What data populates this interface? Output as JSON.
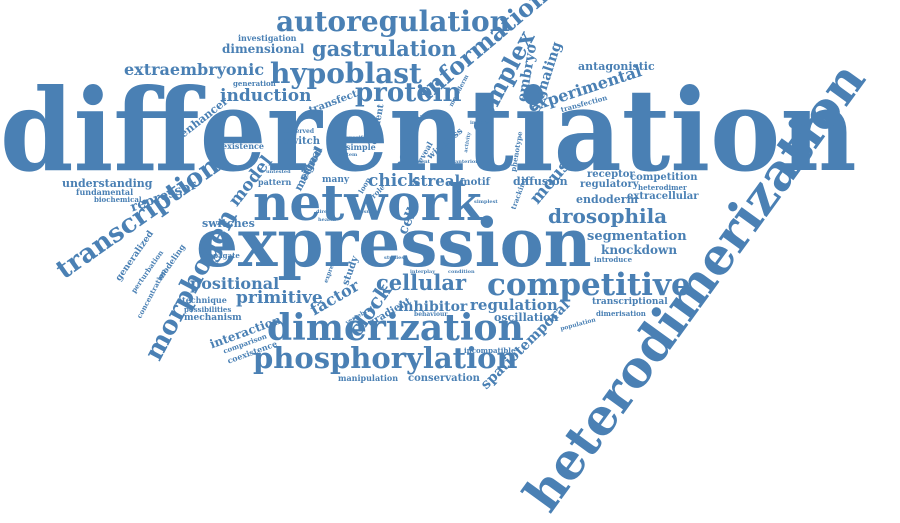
{
  "cloud": {
    "color": "#4a80b4",
    "words": {
      "differentiation": "differentiation",
      "heterodimerization": "heterodimerization",
      "expression": "expression",
      "network": "network",
      "dimerization": "dimerization",
      "phosphorylation": "phosphorylation",
      "competitive": "competitive",
      "transcription": "transcription",
      "morphogen": "morphogen",
      "autoregulation": "autoregulation",
      "hypoblast": "hypoblast",
      "gastrulation": "gastrulation",
      "information": "information",
      "protein": "protein",
      "complex": "complex",
      "extraembryonic": "extraembryonic",
      "induction": "induction",
      "dimensional": "dimensional",
      "investigation": "investigation",
      "signaling": "signaling",
      "embryo": "embryo",
      "experimental": "experimental",
      "antagonistic": "antagonistic",
      "transfection": "transfection",
      "transfect": "transfect",
      "mesoderm": "mesoderm",
      "generation": "generation",
      "enhancer": "enhancer",
      "existence": "existence",
      "observed": "observed",
      "switch": "switch",
      "element": "element",
      "account": "account",
      "wingless": "wingless",
      "feedback": "feedback",
      "intrinsic": "intrinsic",
      "phenotype": "phenotype",
      "chick": "chick",
      "streak": "streak",
      "motif": "motif",
      "mouse": "mouse",
      "diffusion": "diffusion",
      "tracking": "tracking",
      "receptor": "receptor",
      "competition": "competition",
      "regulatory": "regulatory",
      "heterodimer": "heterodimer",
      "extracellular": "extracellular",
      "endoderm": "endoderm",
      "drosophila": "drosophila",
      "segmentation": "segmentation",
      "knockdown": "knockdown",
      "introduce": "introduce",
      "understanding": "understanding",
      "fundamental": "fundamental",
      "biochemical": "biochemical",
      "repressor": "repressor",
      "model": "model",
      "pattern": "pattern",
      "method": "method",
      "signal": "signal",
      "many": "many",
      "cell": "cell",
      "simple": "simple",
      "reveal": "reveal",
      "switches": "switches",
      "generalized": "generalized",
      "perturbation": "perturbation",
      "modeling": "modeling",
      "concentration": "concentration",
      "propagate": "propagate",
      "positional": "positional",
      "primitive": "primitive",
      "technique": "technique",
      "possibilities": "possibilities",
      "mechanism": "mechanism",
      "factor": "factor",
      "clock": "clock",
      "study": "study",
      "cellular": "cellular",
      "gradient": "gradient",
      "inhibitor": "inhibitor",
      "regulation": "regulation",
      "oscillation": "oscillation",
      "spatiotemporal": "spatiotemporal",
      "transcriptional": "transcriptional",
      "dimerisation": "dimerisation",
      "population": "population",
      "interaction": "interaction",
      "comparison": "comparison",
      "coexistence": "coexistence",
      "incompatible": "incompatible",
      "manipulation": "manipulation",
      "conservation": "conservation",
      "behaviour": "behaviour",
      "condition": "condition",
      "vertebrate": "vertebrate",
      "interplay": "interplay",
      "express": "express",
      "studies": "studies",
      "role": "role",
      "loop": "loop",
      "system": "system",
      "specific": "specific",
      "direct": "direct",
      "simplest": "simplest",
      "activity": "activity",
      "potential": "potential",
      "anterior": "anterior",
      "wave": "wave",
      "double": "double",
      "zebrafish": "zebrafish",
      "health": "health",
      "untested": "untested",
      "recent": "recent",
      "result": "result",
      "mutant": "mutant",
      "embryonic": "embryonic",
      "found": "found",
      "stage": "stage",
      "hox": "hox",
      "fgf": "fgf",
      "posterior": "posterior",
      "level": "level"
    }
  }
}
